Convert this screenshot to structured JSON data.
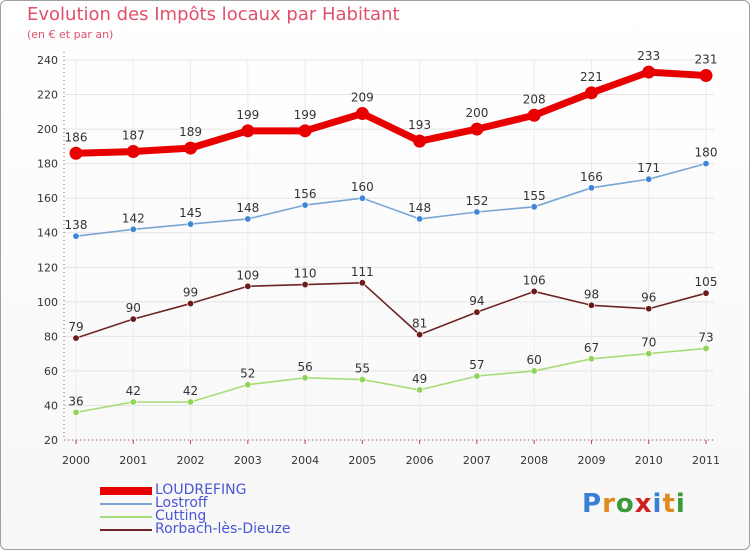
{
  "header": {
    "title": "Evolution des Impôts locaux par Habitant",
    "subtitle": "(en € et par an)"
  },
  "logo": {
    "text": "Proxiti",
    "colors": [
      "#3a7fd6",
      "#e08a20",
      "#3a9a3a",
      "#d02020",
      "#3a7fd6",
      "#e08a20",
      "#3a9a3a"
    ]
  },
  "chart_data": {
    "type": "line",
    "title": "Evolution des Impôts locaux par Habitant",
    "subtitle": "(en € et par an)",
    "xlabel": "",
    "ylabel": "",
    "categories": [
      "2000",
      "2001",
      "2002",
      "2003",
      "2004",
      "2005",
      "2006",
      "2007",
      "2008",
      "2009",
      "2010",
      "2011"
    ],
    "ylim": [
      20,
      240
    ],
    "yticks": [
      20,
      40,
      60,
      80,
      100,
      120,
      140,
      160,
      180,
      200,
      220,
      240
    ],
    "grid": true,
    "legend_position": "bottom-left",
    "series": [
      {
        "name": "LOUDREFING",
        "color": "#e80000",
        "marker": "#e80000",
        "weight": "thick",
        "values": [
          186,
          187,
          189,
          199,
          199,
          209,
          193,
          200,
          208,
          221,
          233,
          231
        ]
      },
      {
        "name": "Lostroff",
        "color": "#7aa6d2",
        "marker": "#3f86d8",
        "weight": "thin",
        "values": [
          138,
          142,
          145,
          148,
          156,
          160,
          148,
          152,
          155,
          166,
          171,
          180
        ]
      },
      {
        "name": "Cutting",
        "color": "#a6dc78",
        "marker": "#8fd45a",
        "weight": "thin",
        "values": [
          36,
          42,
          42,
          52,
          56,
          55,
          49,
          57,
          60,
          67,
          70,
          73
        ]
      },
      {
        "name": "Rorbach-lès-Dieuze",
        "color": "#6e2424",
        "marker": "#6a1a1a",
        "weight": "thin",
        "values": [
          79,
          90,
          99,
          109,
          110,
          111,
          81,
          94,
          106,
          98,
          96,
          105
        ]
      }
    ]
  }
}
